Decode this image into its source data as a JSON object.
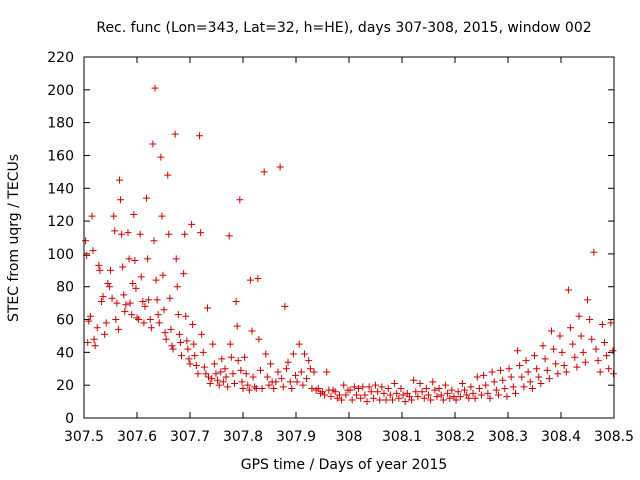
{
  "chart_data": {
    "type": "scatter",
    "title": "Rec. func (Lon=343, Lat=32, h=HE), days 307-308, 2015, window 002",
    "xlabel": "GPS time / Days of year 2015",
    "ylabel": "STEC from uqrg / TECUs",
    "xlim": [
      307.5,
      308.5
    ],
    "ylim": [
      0,
      220
    ],
    "xticks": [
      307.5,
      307.6,
      307.7,
      307.8,
      307.9,
      308,
      308.1,
      308.2,
      308.3,
      308.4,
      308.5
    ],
    "xtick_labels": [
      "307.5",
      "307.6",
      "307.7",
      "307.8",
      "307.9",
      "308",
      "308.1",
      "308.2",
      "308.3",
      "308.4",
      "308.5"
    ],
    "yticks": [
      0,
      20,
      40,
      60,
      80,
      100,
      120,
      140,
      160,
      180,
      200,
      220
    ],
    "ytick_labels": [
      "0",
      "20",
      "40",
      "60",
      "80",
      "100",
      "120",
      "140",
      "160",
      "180",
      "200",
      "220"
    ],
    "grid": false,
    "marker": "+",
    "color": "#cc0000",
    "series": [
      {
        "name": "STEC",
        "points": [
          [
            307.503,
            108
          ],
          [
            307.505,
            99
          ],
          [
            307.507,
            46
          ],
          [
            307.509,
            59
          ],
          [
            307.512,
            62
          ],
          [
            307.515,
            123
          ],
          [
            307.517,
            102
          ],
          [
            307.519,
            48
          ],
          [
            307.521,
            44
          ],
          [
            307.525,
            55
          ],
          [
            307.528,
            93
          ],
          [
            307.53,
            90
          ],
          [
            307.533,
            71
          ],
          [
            307.536,
            74
          ],
          [
            307.539,
            51
          ],
          [
            307.542,
            58
          ],
          [
            307.545,
            82
          ],
          [
            307.548,
            80
          ],
          [
            307.55,
            90
          ],
          [
            307.553,
            73
          ],
          [
            307.556,
            123
          ],
          [
            307.558,
            114
          ],
          [
            307.56,
            60
          ],
          [
            307.562,
            70
          ],
          [
            307.565,
            54
          ],
          [
            307.567,
            145
          ],
          [
            307.569,
            133
          ],
          [
            307.571,
            112
          ],
          [
            307.573,
            92
          ],
          [
            307.575,
            75
          ],
          [
            307.577,
            65
          ],
          [
            307.579,
            69
          ],
          [
            307.583,
            113
          ],
          [
            307.585,
            97
          ],
          [
            307.587,
            70
          ],
          [
            307.59,
            63
          ],
          [
            307.592,
            82
          ],
          [
            307.594,
            124
          ],
          [
            307.596,
            96
          ],
          [
            307.598,
            79
          ],
          [
            307.6,
            61
          ],
          [
            307.603,
            60
          ],
          [
            307.606,
            112
          ],
          [
            307.608,
            86
          ],
          [
            307.611,
            71
          ],
          [
            307.613,
            58
          ],
          [
            307.615,
            68
          ],
          [
            307.618,
            134
          ],
          [
            307.62,
            97
          ],
          [
            307.622,
            72
          ],
          [
            307.625,
            60
          ],
          [
            307.627,
            55
          ],
          [
            307.63,
            167
          ],
          [
            307.632,
            108
          ],
          [
            307.634,
            201
          ],
          [
            307.636,
            84
          ],
          [
            307.638,
            72
          ],
          [
            307.64,
            63
          ],
          [
            307.642,
            58
          ],
          [
            307.645,
            159
          ],
          [
            307.647,
            123
          ],
          [
            307.649,
            87
          ],
          [
            307.651,
            66
          ],
          [
            307.653,
            52
          ],
          [
            307.655,
            48
          ],
          [
            307.658,
            148
          ],
          [
            307.66,
            112
          ],
          [
            307.662,
            73
          ],
          [
            307.664,
            54
          ],
          [
            307.666,
            44
          ],
          [
            307.668,
            42
          ],
          [
            307.672,
            173
          ],
          [
            307.674,
            97
          ],
          [
            307.676,
            80
          ],
          [
            307.678,
            63
          ],
          [
            307.68,
            51
          ],
          [
            307.682,
            46
          ],
          [
            307.684,
            38
          ],
          [
            307.688,
            88
          ],
          [
            307.69,
            112
          ],
          [
            307.692,
            62
          ],
          [
            307.694,
            47
          ],
          [
            307.696,
            42
          ],
          [
            307.698,
            36
          ],
          [
            307.7,
            33
          ],
          [
            307.703,
            118
          ],
          [
            307.705,
            57
          ],
          [
            307.707,
            45
          ],
          [
            307.709,
            38
          ],
          [
            307.712,
            32
          ],
          [
            307.715,
            27
          ],
          [
            307.718,
            172
          ],
          [
            307.72,
            113
          ],
          [
            307.722,
            51
          ],
          [
            307.725,
            40
          ],
          [
            307.727,
            31
          ],
          [
            307.73,
            27
          ],
          [
            307.733,
            67
          ],
          [
            307.735,
            25
          ],
          [
            307.738,
            21
          ],
          [
            307.741,
            24
          ],
          [
            307.743,
            45
          ],
          [
            307.746,
            33
          ],
          [
            307.749,
            27
          ],
          [
            307.752,
            23
          ],
          [
            307.755,
            20
          ],
          [
            307.758,
            28
          ],
          [
            307.76,
            36
          ],
          [
            307.763,
            22
          ],
          [
            307.766,
            30
          ],
          [
            307.768,
            25
          ],
          [
            307.771,
            19
          ],
          [
            307.774,
            111
          ],
          [
            307.776,
            45
          ],
          [
            307.778,
            37
          ],
          [
            307.781,
            27
          ],
          [
            307.784,
            21
          ],
          [
            307.787,
            71
          ],
          [
            307.789,
            56
          ],
          [
            307.791,
            35
          ],
          [
            307.794,
            133
          ],
          [
            307.796,
            29
          ],
          [
            307.798,
            22
          ],
          [
            307.8,
            18
          ],
          [
            307.803,
            37
          ],
          [
            307.806,
            27
          ],
          [
            307.809,
            20
          ],
          [
            307.812,
            17
          ],
          [
            307.814,
            84
          ],
          [
            307.817,
            53
          ],
          [
            307.819,
            25
          ],
          [
            307.822,
            19
          ],
          [
            307.825,
            18
          ],
          [
            307.828,
            85
          ],
          [
            307.83,
            48
          ],
          [
            307.833,
            29
          ],
          [
            307.836,
            18
          ],
          [
            307.84,
            150
          ],
          [
            307.843,
            39
          ],
          [
            307.846,
            25
          ],
          [
            307.849,
            20
          ],
          [
            307.852,
            33
          ],
          [
            307.855,
            22
          ],
          [
            307.858,
            18
          ],
          [
            307.862,
            22
          ],
          [
            307.866,
            28
          ],
          [
            307.87,
            153
          ],
          [
            307.873,
            24
          ],
          [
            307.876,
            19
          ],
          [
            307.879,
            68
          ],
          [
            307.882,
            30
          ],
          [
            307.885,
            34
          ],
          [
            307.889,
            22
          ],
          [
            307.892,
            18
          ],
          [
            307.895,
            39
          ],
          [
            307.899,
            26
          ],
          [
            307.902,
            22
          ],
          [
            307.906,
            45
          ],
          [
            307.91,
            28
          ],
          [
            307.913,
            20
          ],
          [
            307.916,
            39
          ],
          [
            307.92,
            24
          ],
          [
            307.924,
            35
          ],
          [
            307.927,
            30
          ],
          [
            307.93,
            18
          ],
          [
            307.934,
            28
          ],
          [
            307.938,
            17
          ],
          [
            307.942,
            18
          ],
          [
            307.946,
            15
          ],
          [
            307.95,
            16
          ],
          [
            307.954,
            14
          ],
          [
            307.958,
            28
          ],
          [
            307.962,
            17
          ],
          [
            307.966,
            13
          ],
          [
            307.97,
            17
          ],
          [
            307.974,
            16
          ],
          [
            307.978,
            12
          ],
          [
            307.982,
            14
          ],
          [
            307.986,
            11
          ],
          [
            307.99,
            20
          ],
          [
            307.994,
            14
          ],
          [
            307.998,
            17
          ],
          [
            308.002,
            17
          ],
          [
            308.006,
            11
          ],
          [
            308.01,
            19
          ],
          [
            308.014,
            14
          ],
          [
            308.018,
            18
          ],
          [
            308.022,
            12
          ],
          [
            308.026,
            19
          ],
          [
            308.03,
            14
          ],
          [
            308.034,
            10
          ],
          [
            308.038,
            19
          ],
          [
            308.042,
            16
          ],
          [
            308.046,
            12
          ],
          [
            308.05,
            20
          ],
          [
            308.054,
            16
          ],
          [
            308.058,
            11
          ],
          [
            308.062,
            19
          ],
          [
            308.066,
            15
          ],
          [
            308.07,
            11
          ],
          [
            308.074,
            18
          ],
          [
            308.078,
            14
          ],
          [
            308.082,
            11
          ],
          [
            308.086,
            21
          ],
          [
            308.09,
            15
          ],
          [
            308.094,
            12
          ],
          [
            308.098,
            18
          ],
          [
            308.102,
            14
          ],
          [
            308.106,
            10
          ],
          [
            308.11,
            15
          ],
          [
            308.114,
            13
          ],
          [
            308.118,
            11
          ],
          [
            308.122,
            23
          ],
          [
            308.126,
            16
          ],
          [
            308.13,
            13
          ],
          [
            308.134,
            21
          ],
          [
            308.138,
            16
          ],
          [
            308.142,
            12
          ],
          [
            308.146,
            18
          ],
          [
            308.15,
            14
          ],
          [
            308.154,
            11
          ],
          [
            308.158,
            22
          ],
          [
            308.162,
            17
          ],
          [
            308.166,
            13
          ],
          [
            308.17,
            18
          ],
          [
            308.174,
            14
          ],
          [
            308.178,
            11
          ],
          [
            308.182,
            20
          ],
          [
            308.186,
            15
          ],
          [
            308.19,
            12
          ],
          [
            308.194,
            17
          ],
          [
            308.198,
            13
          ],
          [
            308.202,
            11
          ],
          [
            308.206,
            16
          ],
          [
            308.21,
            13
          ],
          [
            308.214,
            21
          ],
          [
            308.218,
            17
          ],
          [
            308.222,
            14
          ],
          [
            308.226,
            12
          ],
          [
            308.23,
            19
          ],
          [
            308.234,
            15
          ],
          [
            308.238,
            12
          ],
          [
            308.242,
            25
          ],
          [
            308.246,
            18
          ],
          [
            308.25,
            14
          ],
          [
            308.254,
            26
          ],
          [
            308.258,
            20
          ],
          [
            308.262,
            15
          ],
          [
            308.266,
            12
          ],
          [
            308.27,
            28
          ],
          [
            308.274,
            22
          ],
          [
            308.278,
            17
          ],
          [
            308.282,
            14
          ],
          [
            308.286,
            29
          ],
          [
            308.29,
            23
          ],
          [
            308.294,
            18
          ],
          [
            308.298,
            13
          ],
          [
            308.302,
            30
          ],
          [
            308.306,
            25
          ],
          [
            308.31,
            19
          ],
          [
            308.314,
            15
          ],
          [
            308.318,
            41
          ],
          [
            308.322,
            32
          ],
          [
            308.326,
            25
          ],
          [
            308.33,
            19
          ],
          [
            308.334,
            35
          ],
          [
            308.338,
            28
          ],
          [
            308.342,
            22
          ],
          [
            308.346,
            18
          ],
          [
            308.35,
            38
          ],
          [
            308.354,
            30
          ],
          [
            308.358,
            25
          ],
          [
            308.362,
            21
          ],
          [
            308.366,
            44
          ],
          [
            308.37,
            36
          ],
          [
            308.374,
            29
          ],
          [
            308.378,
            24
          ],
          [
            308.382,
            53
          ],
          [
            308.386,
            42
          ],
          [
            308.39,
            33
          ],
          [
            308.394,
            27
          ],
          [
            308.398,
            50
          ],
          [
            308.402,
            40
          ],
          [
            308.406,
            32
          ],
          [
            308.41,
            28
          ],
          [
            308.414,
            78
          ],
          [
            308.418,
            55
          ],
          [
            308.422,
            45
          ],
          [
            308.426,
            37
          ],
          [
            308.43,
            31
          ],
          [
            308.434,
            62
          ],
          [
            308.438,
            50
          ],
          [
            308.442,
            40
          ],
          [
            308.446,
            34
          ],
          [
            308.45,
            72
          ],
          [
            308.454,
            60
          ],
          [
            308.458,
            48
          ],
          [
            308.462,
            101
          ],
          [
            308.466,
            42
          ],
          [
            308.47,
            35
          ],
          [
            308.474,
            28
          ],
          [
            308.478,
            57
          ],
          [
            308.482,
            46
          ],
          [
            308.486,
            38
          ],
          [
            308.49,
            30
          ],
          [
            308.494,
            58
          ],
          [
            308.498,
            41
          ],
          [
            308.499,
            27
          ]
        ]
      }
    ]
  }
}
